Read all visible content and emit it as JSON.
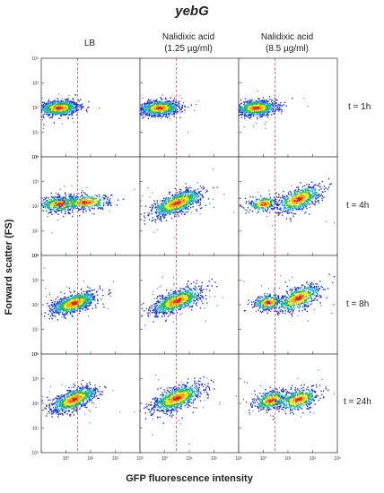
{
  "chart_data": {
    "type": "scatter",
    "title": "yebG",
    "xlabel": "GFP fluorescence intensity",
    "ylabel": "Forward scatter (FS)",
    "x_scale": "log",
    "y_scale": "log",
    "xlim": [
      0.1,
      1000
    ],
    "ylim": [
      1,
      10000
    ],
    "x_tick_labels": [
      "10⁰",
      "10¹",
      "10²",
      "10³"
    ],
    "y_tick_labels": [
      "10⁰",
      "10¹",
      "10²",
      "10³",
      "10⁴"
    ],
    "threshold_x": 3,
    "columns": [
      {
        "line1": "LB",
        "line2": ""
      },
      {
        "line1": "Nalidixic acid",
        "line2": "(1.25 µg/ml)"
      },
      {
        "line1": "Nalidixic acid",
        "line2": "(8.5 µg/ml)"
      }
    ],
    "rows": [
      "t = 1h",
      "t = 4h",
      "t = 8h",
      "t = 24h"
    ],
    "panels": [
      {
        "row": "t = 1h",
        "column": "LB",
        "populations": [
          {
            "x": 0.5,
            "y": 100,
            "spread_x": 0.4,
            "spread_y": 0.15,
            "tilt": 0.05,
            "weight": 1
          }
        ]
      },
      {
        "row": "t = 1h",
        "column": "Nalidixic acid (1.25 µg/ml)",
        "populations": [
          {
            "x": 0.6,
            "y": 100,
            "spread_x": 0.4,
            "spread_y": 0.15,
            "tilt": 0.05,
            "weight": 1
          }
        ]
      },
      {
        "row": "t = 1h",
        "column": "Nalidixic acid (8.5 µg/ml)",
        "populations": [
          {
            "x": 0.5,
            "y": 100,
            "spread_x": 0.4,
            "spread_y": 0.15,
            "tilt": 0.05,
            "weight": 1
          }
        ]
      },
      {
        "row": "t = 4h",
        "column": "LB",
        "populations": [
          {
            "x": 0.6,
            "y": 130,
            "spread_x": 0.45,
            "spread_y": 0.15,
            "tilt": 0.05,
            "weight": 0.6
          },
          {
            "x": 6,
            "y": 150,
            "spread_x": 0.5,
            "spread_y": 0.15,
            "tilt": 0.05,
            "weight": 0.4
          }
        ]
      },
      {
        "row": "t = 4h",
        "column": "Nalidixic acid (1.25 µg/ml)",
        "populations": [
          {
            "x": 3,
            "y": 140,
            "spread_x": 0.5,
            "spread_y": 0.2,
            "tilt": 0.35,
            "weight": 1
          }
        ]
      },
      {
        "row": "t = 4h",
        "column": "Nalidixic acid (8.5 µg/ml)",
        "populations": [
          {
            "x": 1,
            "y": 130,
            "spread_x": 0.3,
            "spread_y": 0.15,
            "tilt": 0.1,
            "weight": 0.3
          },
          {
            "x": 25,
            "y": 200,
            "spread_x": 0.45,
            "spread_y": 0.22,
            "tilt": 0.35,
            "weight": 0.7
          }
        ]
      },
      {
        "row": "t = 8h",
        "column": "LB",
        "populations": [
          {
            "x": 2,
            "y": 120,
            "spread_x": 0.45,
            "spread_y": 0.18,
            "tilt": 0.3,
            "weight": 1
          }
        ]
      },
      {
        "row": "t = 8h",
        "column": "Nalidixic acid (1.25 µg/ml)",
        "populations": [
          {
            "x": 3,
            "y": 150,
            "spread_x": 0.5,
            "spread_y": 0.2,
            "tilt": 0.35,
            "weight": 1
          }
        ]
      },
      {
        "row": "t = 8h",
        "column": "Nalidixic acid (8.5 µg/ml)",
        "populations": [
          {
            "x": 1.5,
            "y": 130,
            "spread_x": 0.3,
            "spread_y": 0.15,
            "tilt": 0.1,
            "weight": 0.35
          },
          {
            "x": 25,
            "y": 190,
            "spread_x": 0.45,
            "spread_y": 0.22,
            "tilt": 0.35,
            "weight": 0.65
          }
        ]
      },
      {
        "row": "t = 24h",
        "column": "LB",
        "populations": [
          {
            "x": 2,
            "y": 150,
            "spread_x": 0.45,
            "spread_y": 0.2,
            "tilt": 0.35,
            "weight": 1
          }
        ]
      },
      {
        "row": "t = 24h",
        "column": "Nalidixic acid (1.25 µg/ml)",
        "populations": [
          {
            "x": 3,
            "y": 170,
            "spread_x": 0.5,
            "spread_y": 0.22,
            "tilt": 0.35,
            "weight": 1
          }
        ]
      },
      {
        "row": "t = 24h",
        "column": "Nalidixic acid (8.5 µg/ml)",
        "populations": [
          {
            "x": 2,
            "y": 140,
            "spread_x": 0.35,
            "spread_y": 0.18,
            "tilt": 0.2,
            "weight": 0.5
          },
          {
            "x": 25,
            "y": 150,
            "spread_x": 0.4,
            "spread_y": 0.2,
            "tilt": 0.25,
            "weight": 0.5
          }
        ]
      }
    ]
  }
}
